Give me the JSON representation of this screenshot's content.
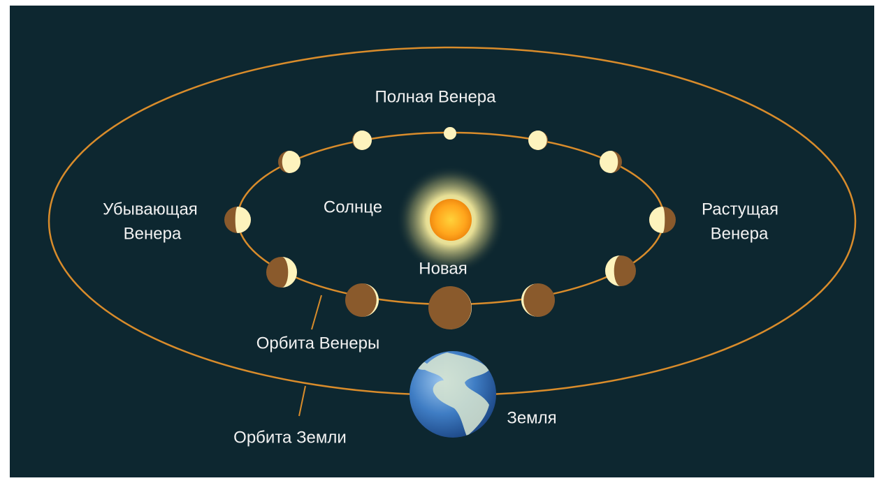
{
  "labels": {
    "full_venus": "Полная Венера",
    "waning_venus": [
      "Убывающая",
      "Венера"
    ],
    "sun": "Солнце",
    "waxing_venus": [
      "Растущая",
      "Венера"
    ],
    "new_venus": "Новая",
    "venus_orbit": "Орбита Венеры",
    "earth": "Земля",
    "earth_orbit": "Орбита Земли"
  }
}
